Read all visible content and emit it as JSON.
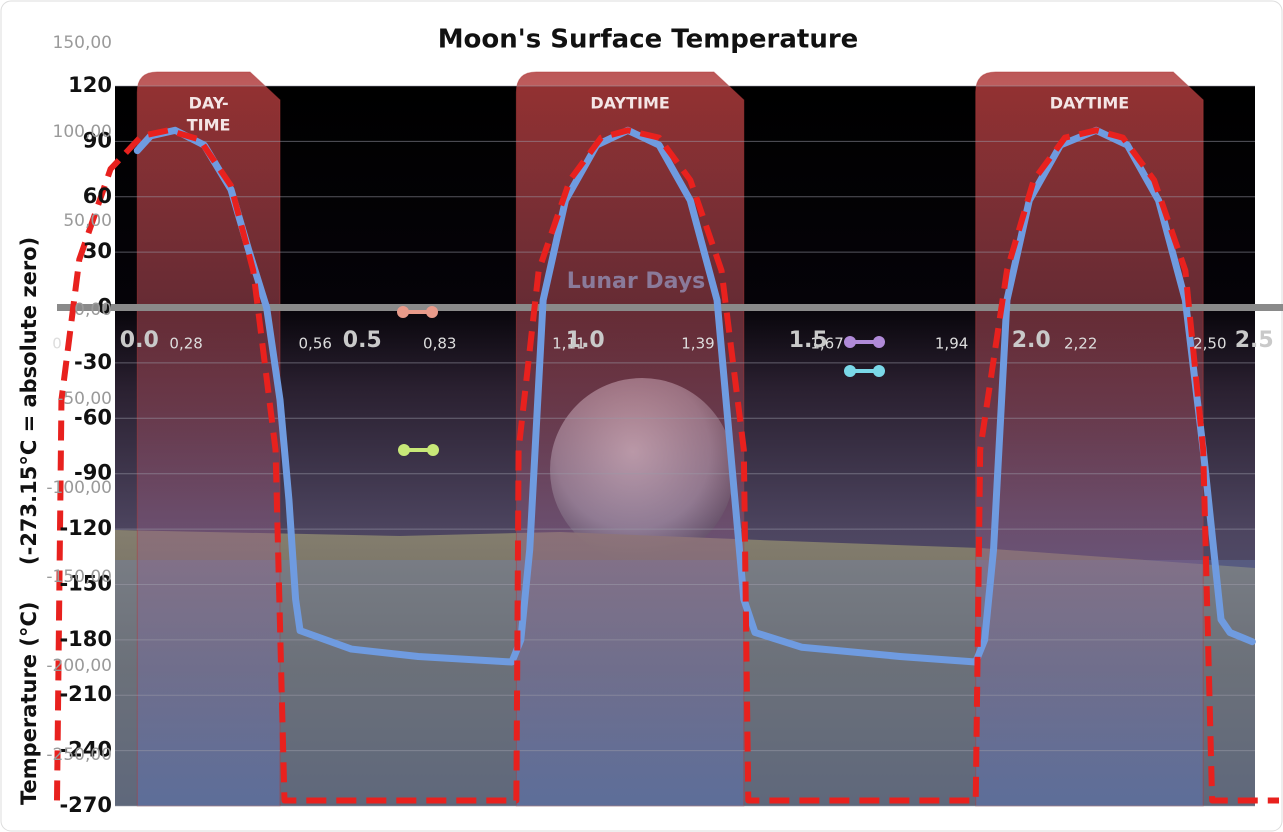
{
  "chart_data": {
    "type": "line",
    "title": "Moon's Surface Temperature",
    "ylabel": "Temperature (°C)",
    "ylabel_note": "(-273.15°C = absolute zero)",
    "xlabel": "Lunar Days",
    "xlim": [
      -0.18,
      2.56
    ],
    "xticks": [
      {
        "value": 0,
        "label": "0.0"
      },
      0.5,
      {
        "value": 1,
        "label": "1.0"
      },
      1.5,
      {
        "value": 2,
        "label": "2.0"
      },
      2.5
    ],
    "x2lim": [
      0,
      2.65
    ],
    "x2ticks": [
      0,
      {
        "value": 0.28,
        "label": "0,28"
      },
      {
        "value": 0.56,
        "label": "0,56"
      },
      {
        "value": 0.83,
        "label": "0,83"
      },
      {
        "value": 1.11,
        "label": "1,11"
      },
      {
        "value": 1.39,
        "label": "1,39"
      },
      {
        "value": 1.67,
        "label": "1,67"
      },
      {
        "value": 1.94,
        "label": "1,94"
      },
      {
        "value": 2.22,
        "label": "2,22"
      },
      {
        "value": 2.5,
        "label": "2,50"
      }
    ],
    "ylim": [
      -270,
      120
    ],
    "yticks": [
      120,
      90,
      60,
      30,
      0,
      -30,
      -60,
      -90,
      -120,
      -150,
      -180,
      -210,
      -240,
      -270
    ],
    "y2lim": [
      -278.7,
      125.8
    ],
    "y2ticks": [
      {
        "value": 150,
        "label": "150,00"
      },
      {
        "value": 100,
        "label": "100,00"
      },
      {
        "value": 50,
        "label": "50,00"
      },
      {
        "value": 0,
        "label": "0,00"
      },
      {
        "value": -50,
        "label": "-50,00"
      },
      {
        "value": -100,
        "label": "-100,00"
      },
      {
        "value": -150,
        "label": "-150,00"
      },
      {
        "value": -200,
        "label": "-200,00"
      },
      {
        "value": -250,
        "label": "-250,00"
      }
    ],
    "grid": true,
    "day_bands": [
      {
        "x": [
          0.0,
          0.32
        ],
        "label": [
          "DAY-",
          "TIME"
        ]
      },
      {
        "x": [
          0.85,
          1.36
        ],
        "label": [
          "DAYTIME"
        ]
      },
      {
        "x": [
          1.88,
          2.39
        ],
        "label": [
          "DAYTIME"
        ]
      }
    ],
    "band_color": "#b03a3a",
    "series": [
      {
        "color": "#6f9be0",
        "dash": false,
        "x": [
          0.0,
          0.03,
          0.085,
          0.15,
          0.21,
          0.25,
          0.29,
          0.32,
          0.34,
          0.355,
          0.365,
          0.48,
          0.63,
          0.84,
          0.86,
          0.88,
          0.91,
          0.96,
          1.03,
          1.1,
          1.17,
          1.24,
          1.3,
          1.33,
          1.36,
          1.385,
          1.49,
          1.71,
          1.88,
          1.9,
          1.92,
          1.95,
          2.0,
          2.07,
          2.15,
          2.22,
          2.29,
          2.35,
          2.39,
          2.43,
          2.45,
          2.5
        ],
        "values": [
          85,
          93,
          96,
          88,
          64,
          31,
          0,
          -50,
          -104,
          -158,
          -175,
          -185,
          -189,
          -192,
          -180,
          -131,
          4,
          58,
          88,
          96,
          88,
          58,
          4,
          -77,
          -158,
          -176,
          -184,
          -189,
          -192,
          -180,
          -131,
          4,
          58,
          88,
          96,
          88,
          58,
          4,
          -77,
          -169,
          -176,
          -181
        ]
      },
      {
        "color": "#e8211e",
        "dash": true,
        "x": [
          -0.18,
          -0.17,
          -0.13,
          -0.06,
          0.01,
          0.07,
          0.14,
          0.21,
          0.26,
          0.31,
          0.33,
          0.85,
          0.855,
          0.9,
          0.97,
          1.04,
          1.1,
          1.17,
          1.24,
          1.31,
          1.36,
          1.37,
          1.88,
          1.89,
          1.95,
          2.01,
          2.08,
          2.15,
          2.21,
          2.28,
          2.35,
          2.39,
          2.41,
          2.56
        ],
        "values": [
          -267,
          -50,
          26,
          75,
          93,
          96,
          91,
          66,
          20,
          -77,
          -267,
          -267,
          -77,
          20,
          69,
          92,
          96,
          92,
          69,
          20,
          -77,
          -267,
          -267,
          -77,
          20,
          69,
          92,
          96,
          92,
          69,
          20,
          -77,
          -267,
          -267
        ]
      }
    ]
  }
}
